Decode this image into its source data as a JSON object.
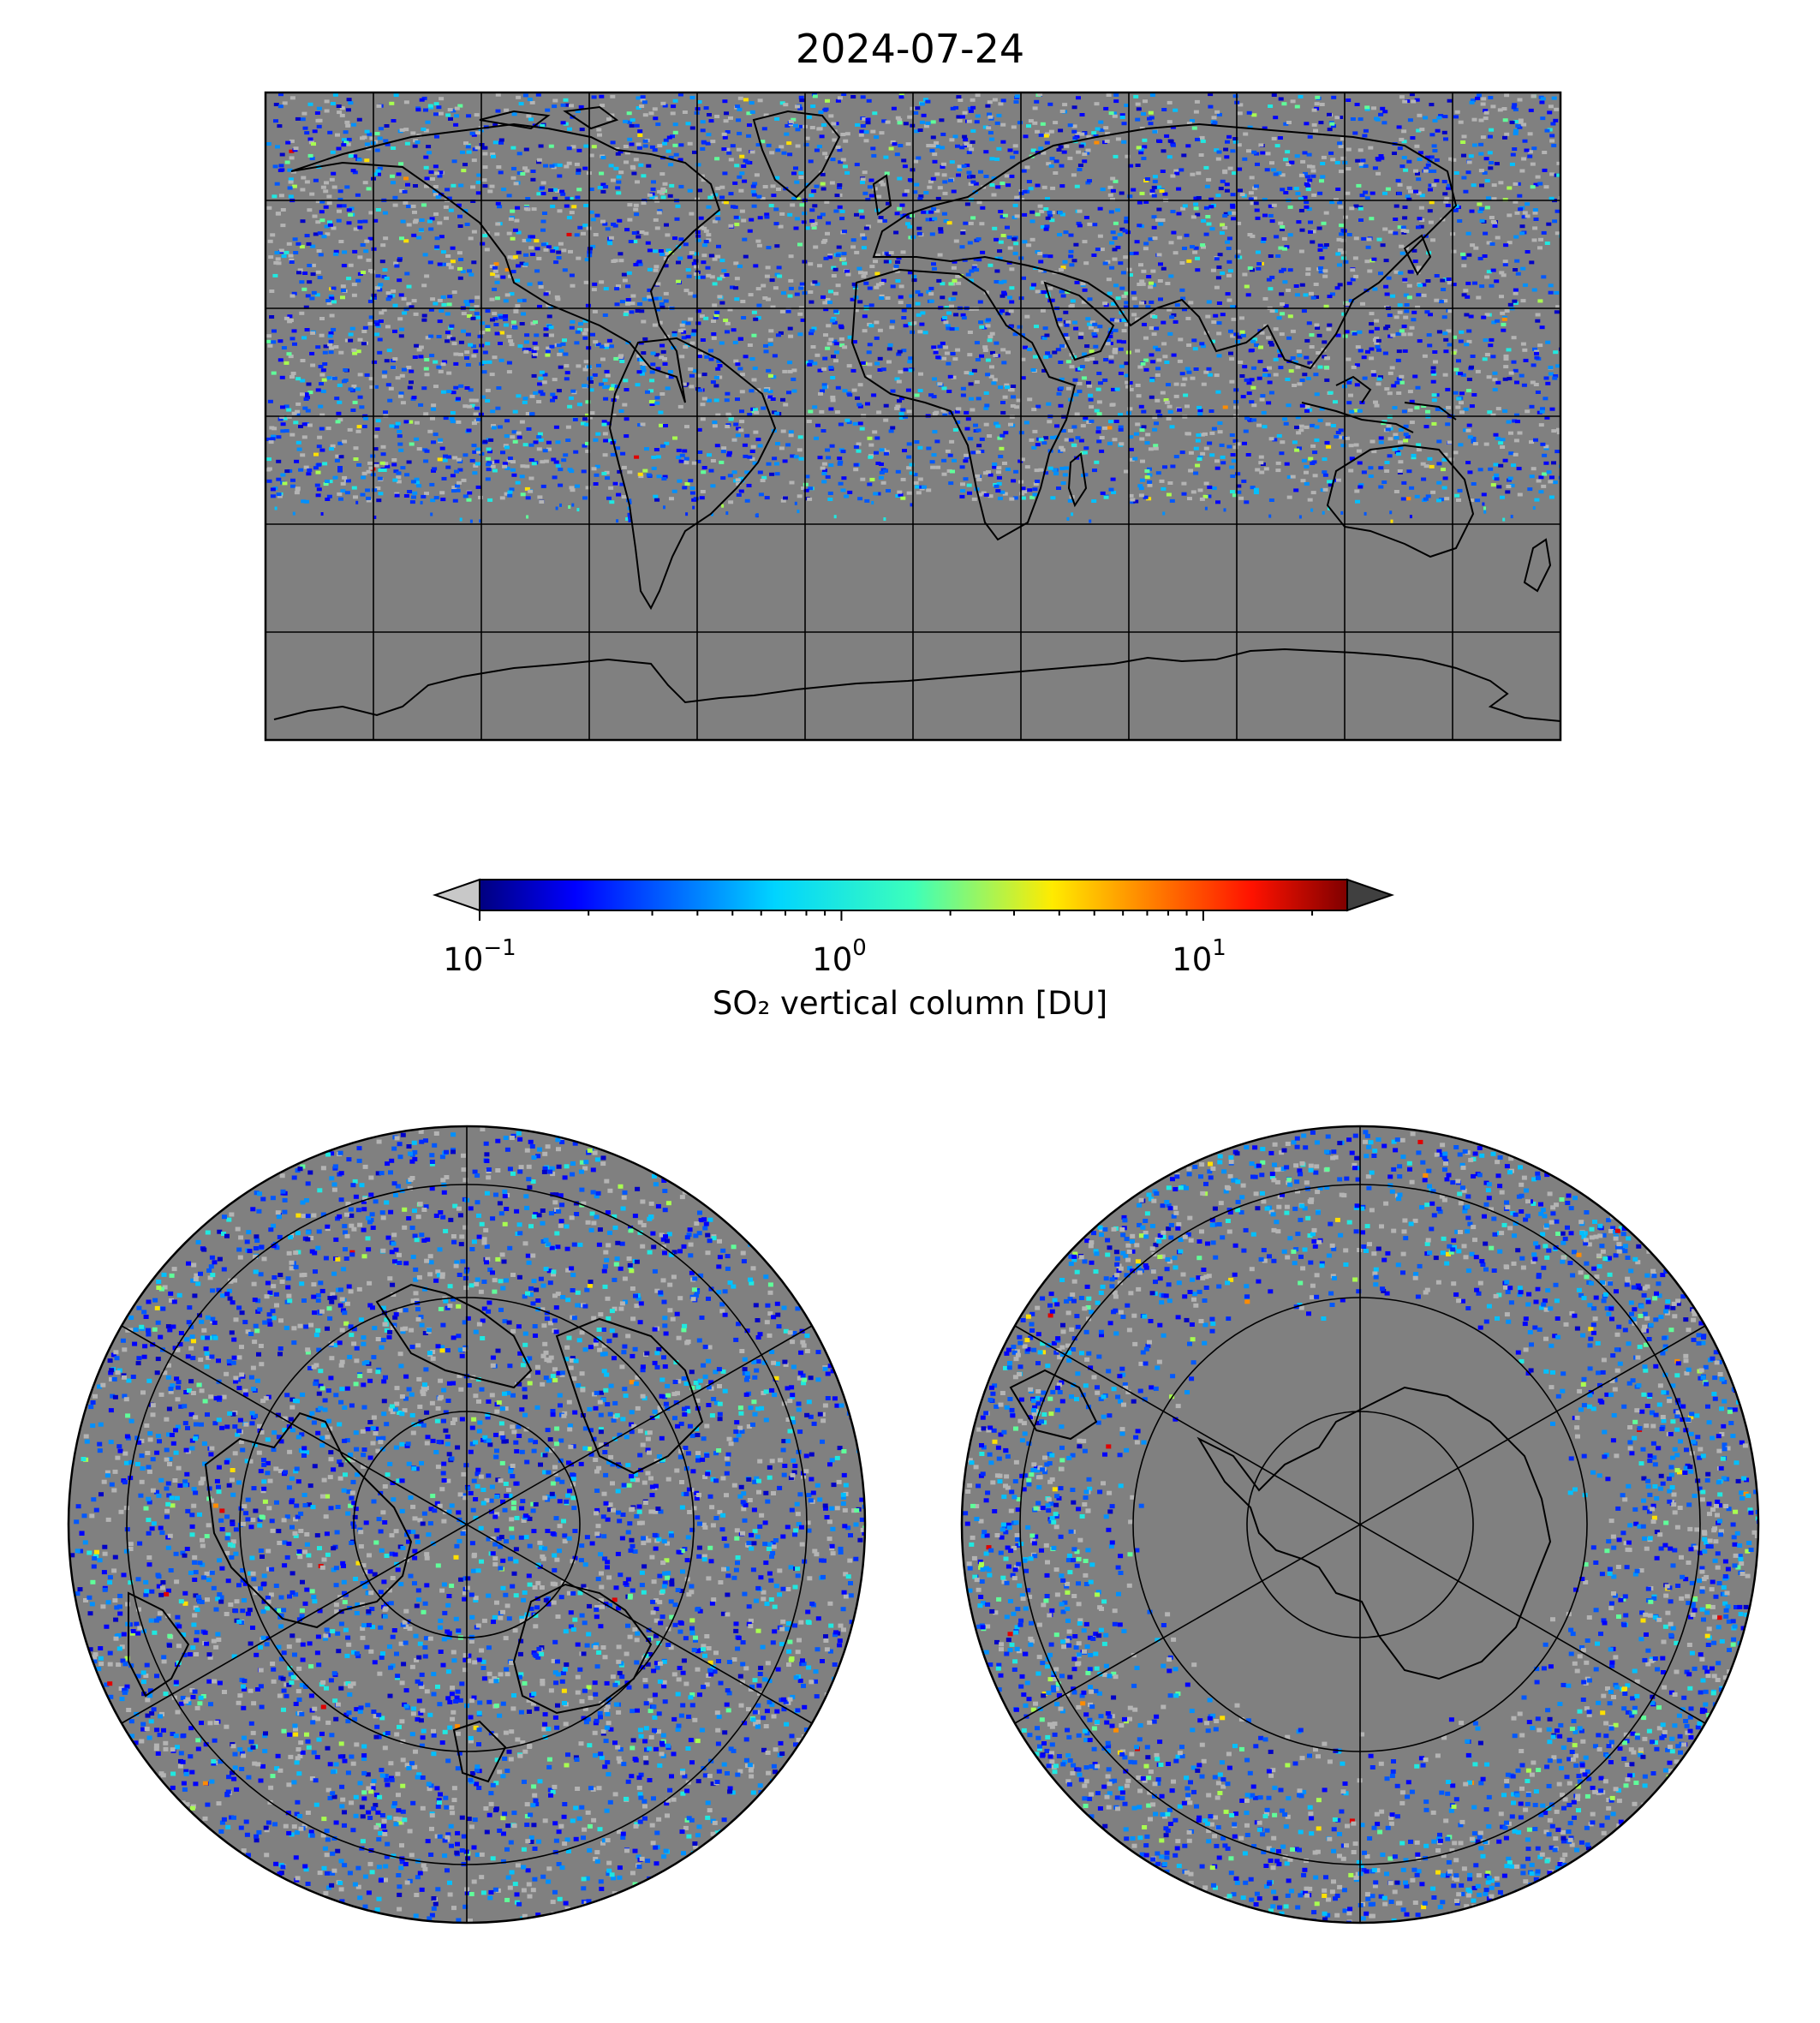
{
  "title": "2024-07-24",
  "colorbar": {
    "label": "SO₂ vertical column [DU]",
    "scale": "log",
    "range": [
      0.1,
      25
    ],
    "colormap": "jet",
    "under_color": "#c8c8c8",
    "over_color": "#404040",
    "ticks": [
      {
        "value": 0.1,
        "base": "10",
        "exp": "−1"
      },
      {
        "value": 1,
        "base": "10",
        "exp": "0"
      },
      {
        "value": 10,
        "base": "10",
        "exp": "1"
      }
    ]
  },
  "maps": [
    {
      "projection": "plate-carree",
      "extent": "global",
      "gridlines": "30 degrees",
      "background_color": "#808080"
    },
    {
      "projection": "north-polar-stereographic",
      "gridlines": true,
      "background_color": "#808080"
    },
    {
      "projection": "south-polar-stereographic",
      "gridlines": true,
      "background_color": "#808080"
    }
  ]
}
